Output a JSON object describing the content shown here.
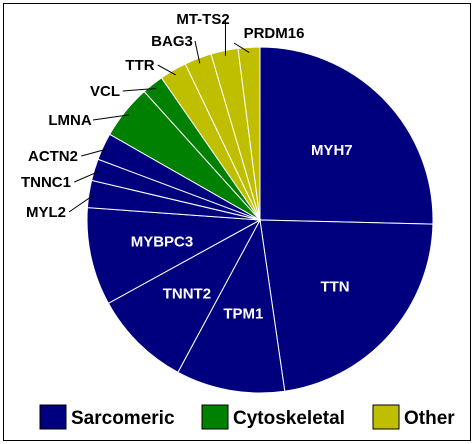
{
  "chart_data": {
    "type": "pie",
    "slices": [
      {
        "name": "MYH7",
        "value": 25,
        "group": "Sarcomeric"
      },
      {
        "name": "TTN",
        "value": 22,
        "group": "Sarcomeric"
      },
      {
        "name": "TPM1",
        "value": 10,
        "group": "Sarcomeric"
      },
      {
        "name": "TNNT2",
        "value": 9,
        "group": "Sarcomeric"
      },
      {
        "name": "MYBPC3",
        "value": 9,
        "group": "Sarcomeric"
      },
      {
        "name": "MYL2",
        "value": 2.5,
        "group": "Sarcomeric"
      },
      {
        "name": "TNNC1",
        "value": 2,
        "group": "Sarcomeric"
      },
      {
        "name": "ACTN2",
        "value": 2.5,
        "group": "Sarcomeric"
      },
      {
        "name": "LMNA",
        "value": 5,
        "group": "Cytoskeletal"
      },
      {
        "name": "VCL",
        "value": 2,
        "group": "Cytoskeletal"
      },
      {
        "name": "TTR",
        "value": 2.5,
        "group": "Other"
      },
      {
        "name": "BAG3",
        "value": 2.5,
        "group": "Other"
      },
      {
        "name": "MT-TS2",
        "value": 2.5,
        "group": "Other"
      },
      {
        "name": "PRDM16",
        "value": 2,
        "group": "Other"
      }
    ],
    "groups": [
      {
        "name": "Sarcomeric",
        "color": "#00007f"
      },
      {
        "name": "Cytoskeletal",
        "color": "#008000"
      },
      {
        "name": "Other",
        "color": "#bfbf00"
      }
    ],
    "label_color_inside": "#ffffff",
    "label_color_outside": "#000000",
    "legend_placement": "bottom"
  }
}
